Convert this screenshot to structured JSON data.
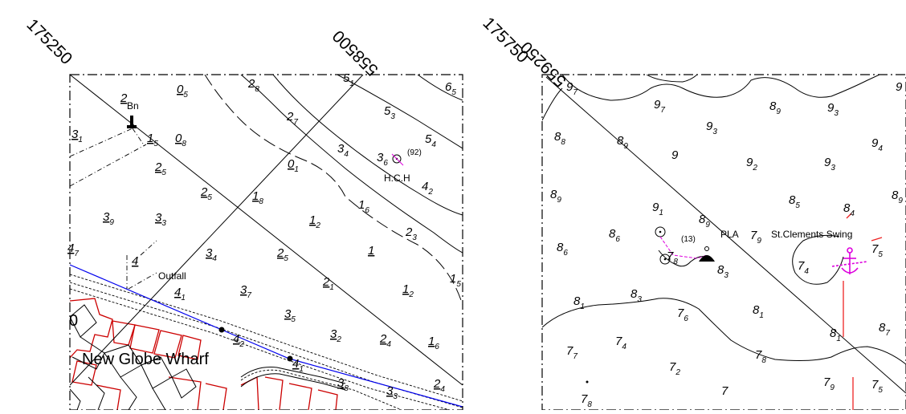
{
  "grid": {
    "left_east": "175250",
    "left_north": "558500",
    "right_east": "175750",
    "right_north": "559250"
  },
  "left_sheet": {
    "place_name": "New Globe Wharf",
    "outfall_label": "Outfall",
    "beacon_label": "Bn",
    "station_label": "H.C.H",
    "station_value": "(92)",
    "edge_digit": "0",
    "soundings": [
      {
        "m": "2",
        "d": "",
        "u": true
      },
      {
        "m": "3",
        "d": "1",
        "u": true
      },
      {
        "m": "1",
        "d": "5",
        "u": true
      },
      {
        "m": "0",
        "d": "5",
        "u": true
      },
      {
        "m": "2",
        "d": "8",
        "u": false
      },
      {
        "m": "5",
        "d": "1",
        "u": false
      },
      {
        "m": "6",
        "d": "5",
        "u": false
      },
      {
        "m": "5",
        "d": "3",
        "u": false
      },
      {
        "m": "2",
        "d": "7",
        "u": false
      },
      {
        "m": "0",
        "d": "8",
        "u": true
      },
      {
        "m": "3",
        "d": "4",
        "u": false
      },
      {
        "m": "5",
        "d": "4",
        "u": false
      },
      {
        "m": "3",
        "d": "6",
        "u": false
      },
      {
        "m": "4",
        "d": "2",
        "u": false
      },
      {
        "m": "2",
        "d": "5",
        "u": true
      },
      {
        "m": "0",
        "d": "1",
        "u": true
      },
      {
        "m": "2",
        "d": "5",
        "u": true
      },
      {
        "m": "1",
        "d": "8",
        "u": true
      },
      {
        "m": "1",
        "d": "6",
        "u": false
      },
      {
        "m": "3",
        "d": "9",
        "u": true
      },
      {
        "m": "3",
        "d": "3",
        "u": true
      },
      {
        "m": "1",
        "d": "2",
        "u": true
      },
      {
        "m": "2",
        "d": "3",
        "u": false
      },
      {
        "m": "4",
        "d": "7",
        "u": true
      },
      {
        "m": "4",
        "d": "",
        "u": true
      },
      {
        "m": "3",
        "d": "4",
        "u": true
      },
      {
        "m": "2",
        "d": "5",
        "u": true
      },
      {
        "m": "1",
        "d": "",
        "u": true
      },
      {
        "m": "1",
        "d": "5",
        "u": false
      },
      {
        "m": "4",
        "d": "1",
        "u": true
      },
      {
        "m": "2",
        "d": "1",
        "u": true
      },
      {
        "m": "3",
        "d": "7",
        "u": true
      },
      {
        "m": "1",
        "d": "2",
        "u": true
      },
      {
        "m": "3",
        "d": "5",
        "u": true
      },
      {
        "m": "4",
        "d": "2",
        "u": true
      },
      {
        "m": "3",
        "d": "2",
        "u": true
      },
      {
        "m": "2",
        "d": "4",
        "u": true
      },
      {
        "m": "1",
        "d": "6",
        "u": true
      },
      {
        "m": "4",
        "d": "1",
        "u": true
      },
      {
        "m": "3",
        "d": "8",
        "u": true
      },
      {
        "m": "3",
        "d": "3",
        "u": true
      },
      {
        "m": "2",
        "d": "4",
        "u": true
      }
    ]
  },
  "right_sheet": {
    "pla_label": "PLA",
    "pla_sounding": {
      "m": "7",
      "d": "9"
    },
    "swing_label": "St.Clements Swing",
    "station_value": "(13)",
    "soundings": [
      {
        "m": "9",
        "d": "7"
      },
      {
        "m": "9",
        "d": "7"
      },
      {
        "m": "9",
        "d": ""
      },
      {
        "m": "8",
        "d": "9"
      },
      {
        "m": "9",
        "d": "3"
      },
      {
        "m": "9",
        "d": "3"
      },
      {
        "m": "8",
        "d": "8"
      },
      {
        "m": "8",
        "d": "9"
      },
      {
        "m": "9",
        "d": ""
      },
      {
        "m": "9",
        "d": "2"
      },
      {
        "m": "9",
        "d": "3"
      },
      {
        "m": "9",
        "d": "4"
      },
      {
        "m": "8",
        "d": "9"
      },
      {
        "m": "9",
        "d": "1"
      },
      {
        "m": "8",
        "d": "9"
      },
      {
        "m": "8",
        "d": "5"
      },
      {
        "m": "8",
        "d": "4"
      },
      {
        "m": "8",
        "d": "9"
      },
      {
        "m": "8",
        "d": "6"
      },
      {
        "m": "8",
        "d": "6"
      },
      {
        "m": "7",
        "d": "8"
      },
      {
        "m": "8",
        "d": "3"
      },
      {
        "m": "7",
        "d": "4"
      },
      {
        "m": "7",
        "d": "5"
      },
      {
        "m": "8",
        "d": "1"
      },
      {
        "m": "8",
        "d": "3"
      },
      {
        "m": "7",
        "d": "6"
      },
      {
        "m": "8",
        "d": "1"
      },
      {
        "m": "8",
        "d": "1"
      },
      {
        "m": "8",
        "d": "7"
      },
      {
        "m": "7",
        "d": "7"
      },
      {
        "m": "7",
        "d": "4"
      },
      {
        "m": "7",
        "d": "2"
      },
      {
        "m": "7",
        "d": "8"
      },
      {
        "m": "7",
        "d": "9"
      },
      {
        "m": "7",
        "d": "5"
      },
      {
        "m": "7",
        "d": ""
      },
      {
        "m": "7",
        "d": "8"
      }
    ]
  }
}
